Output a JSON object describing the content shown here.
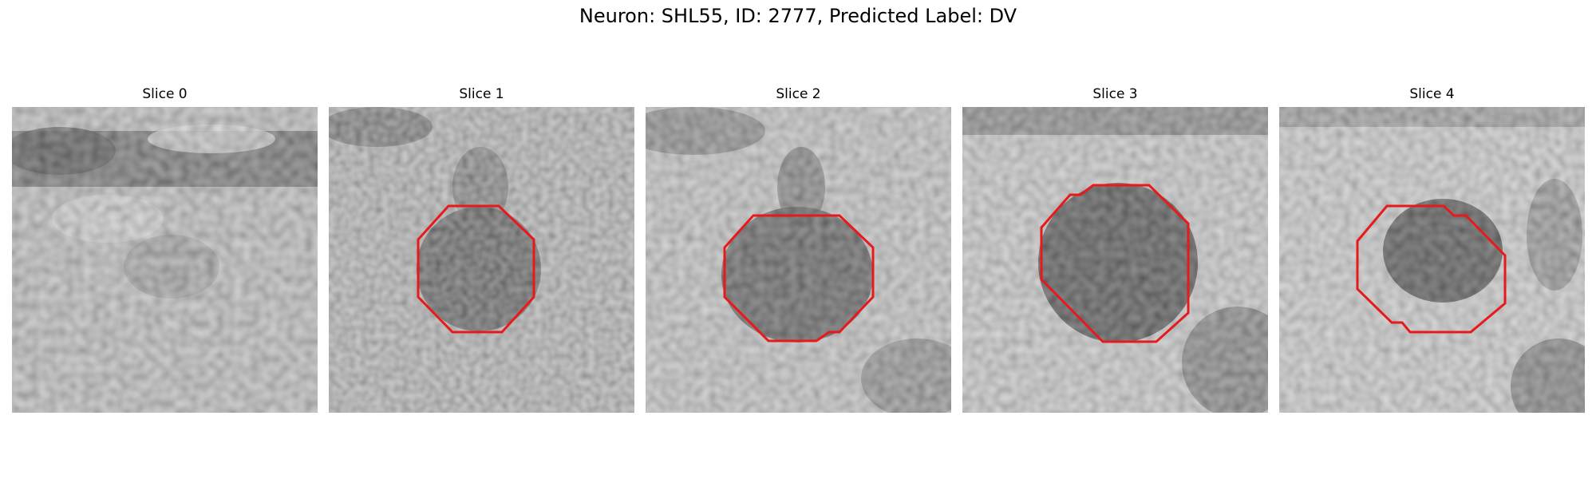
{
  "figure": {
    "title": "Neuron: SHL55, ID: 2777, Predicted Label: DV"
  },
  "contour_color": "#e8191b",
  "slices": [
    {
      "title": "Slice 0",
      "has_contour": false
    },
    {
      "title": "Slice 1",
      "has_contour": true
    },
    {
      "title": "Slice 2",
      "has_contour": true
    },
    {
      "title": "Slice 3",
      "has_contour": true
    },
    {
      "title": "Slice 4",
      "has_contour": true
    }
  ]
}
